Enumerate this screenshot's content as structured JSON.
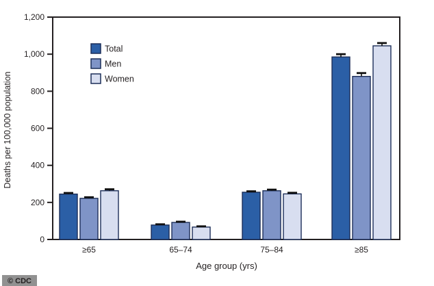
{
  "watermark": "© CDC",
  "colors": {
    "axis": "#231f20",
    "bar_stroke": "#1c2e58",
    "error_bar": "#111111",
    "watermark_bg": "#919191",
    "watermark_text": "#ffffff",
    "total": "#2b5fa6",
    "men": "#7f94c7",
    "women": "#d8def0"
  },
  "chart_data": {
    "type": "bar",
    "title": "",
    "xlabel": "Age group (yrs)",
    "ylabel": "Deaths per 100,000 population",
    "ylim": [
      0,
      1200
    ],
    "ytick_step": 200,
    "ytick_labels": [
      "0",
      "200",
      "400",
      "600",
      "800",
      "1,000",
      "1,200"
    ],
    "categories": [
      "≥65",
      "65–74",
      "75–84",
      "≥85"
    ],
    "grid": false,
    "legend_position": "upper-left-inside",
    "series": [
      {
        "name": "Total",
        "color": "#2b5fa6",
        "values": [
          245,
          78,
          255,
          985
        ],
        "errors": [
          6,
          4,
          5,
          15
        ]
      },
      {
        "name": "Men",
        "color": "#7f94c7",
        "values": [
          222,
          92,
          263,
          880
        ],
        "errors": [
          6,
          4,
          6,
          18
        ]
      },
      {
        "name": "Women",
        "color": "#d8def0",
        "values": [
          263,
          67,
          246,
          1045
        ],
        "errors": [
          8,
          4,
          6,
          15
        ]
      }
    ]
  }
}
